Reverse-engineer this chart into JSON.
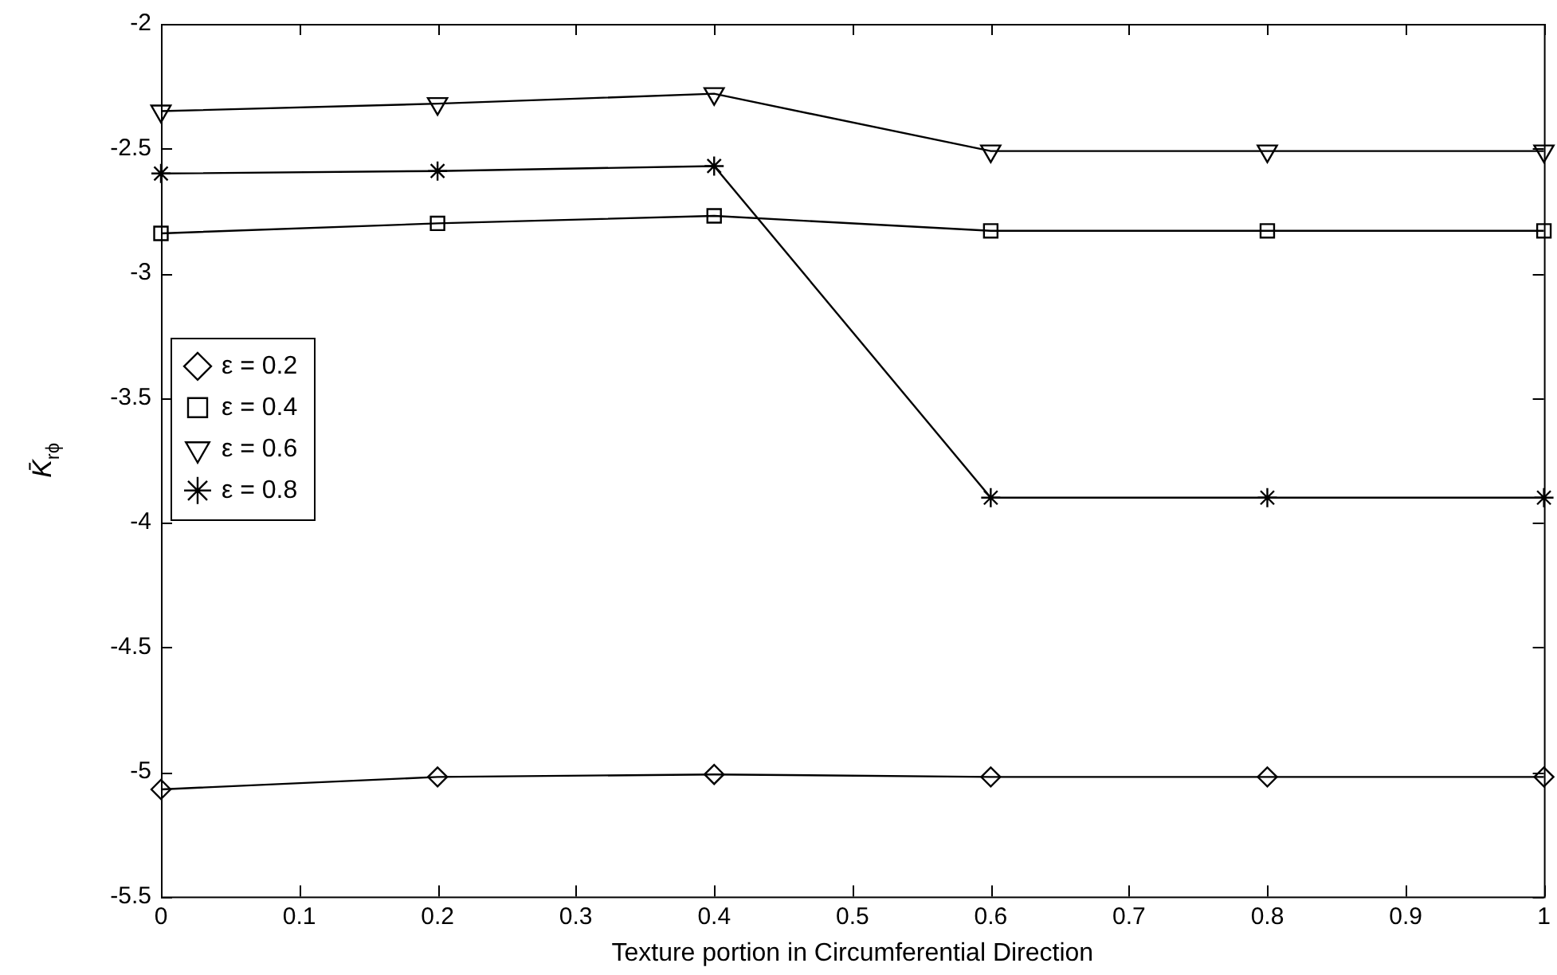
{
  "chart_data": {
    "type": "line",
    "xlabel": "Texture portion in Circumferential Direction",
    "ylabel": "K̄$_{rϕ}$",
    "x": [
      0,
      0.2,
      0.4,
      0.6,
      0.8,
      1
    ],
    "series": [
      {
        "name": "ε = 0.2",
        "color": "#000000",
        "marker": "diamond",
        "values": [
          -5.07,
          -5.02,
          -5.01,
          -5.02,
          -5.02,
          -5.02
        ]
      },
      {
        "name": "ε = 0.4",
        "color": "#000000",
        "marker": "square",
        "values": [
          -2.84,
          -2.8,
          -2.77,
          -2.83,
          -2.83,
          -2.83
        ]
      },
      {
        "name": "ε = 0.6",
        "color": "#000000",
        "marker": "triangle",
        "values": [
          -2.35,
          -2.32,
          -2.28,
          -2.51,
          -2.51,
          -2.51
        ]
      },
      {
        "name": "ε = 0.8",
        "color": "#000000",
        "marker": "cross",
        "values": [
          -2.6,
          -2.59,
          -2.57,
          -3.9,
          -3.9,
          -3.9
        ]
      }
    ],
    "xlim": [
      0,
      1
    ],
    "xticks": [
      0,
      0.1,
      0.2,
      0.3,
      0.4,
      0.5,
      0.6,
      0.7,
      0.8,
      0.9,
      1
    ],
    "ylim": [
      -5.5,
      -2
    ],
    "yticks": [
      -5.5,
      -5,
      -4.5,
      -4,
      -3.5,
      -3,
      -2.5,
      -2
    ],
    "grid": false,
    "legend": "left",
    "line_style": "solid"
  }
}
